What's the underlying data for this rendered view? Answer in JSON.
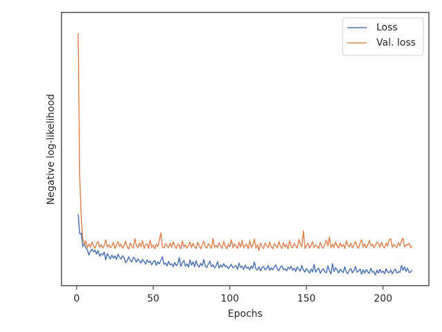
{
  "chart_data": {
    "type": "line",
    "xlabel": "Epochs",
    "ylabel": "Negative log-likelihood",
    "xlim": [
      -9.9,
      229.9
    ],
    "ylim": [
      0,
      100
    ],
    "xticks": [
      0,
      50,
      100,
      150,
      200
    ],
    "legend": "upper right",
    "x": [
      1,
      2,
      3,
      4,
      5,
      6,
      7,
      8,
      9,
      10,
      11,
      12,
      13,
      14,
      15,
      16,
      17,
      18,
      19,
      20,
      21,
      22,
      23,
      24,
      25,
      26,
      27,
      28,
      29,
      30,
      31,
      32,
      33,
      34,
      35,
      36,
      37,
      38,
      39,
      40,
      41,
      42,
      43,
      44,
      45,
      46,
      47,
      48,
      49,
      50,
      51,
      52,
      53,
      54,
      55,
      56,
      57,
      58,
      59,
      60,
      61,
      62,
      63,
      64,
      65,
      66,
      67,
      68,
      69,
      70,
      71,
      72,
      73,
      74,
      75,
      76,
      77,
      78,
      79,
      80,
      81,
      82,
      83,
      84,
      85,
      86,
      87,
      88,
      89,
      90,
      91,
      92,
      93,
      94,
      95,
      96,
      97,
      98,
      99,
      100,
      101,
      102,
      103,
      104,
      105,
      106,
      107,
      108,
      109,
      110,
      111,
      112,
      113,
      114,
      115,
      116,
      117,
      118,
      119,
      120,
      121,
      122,
      123,
      124,
      125,
      126,
      127,
      128,
      129,
      130,
      131,
      132,
      133,
      134,
      135,
      136,
      137,
      138,
      139,
      140,
      141,
      142,
      143,
      144,
      145,
      146,
      147,
      148,
      149,
      150,
      151,
      152,
      153,
      154,
      155,
      156,
      157,
      158,
      159,
      160,
      161,
      162,
      163,
      164,
      165,
      166,
      167,
      168,
      169,
      170,
      171,
      172,
      173,
      174,
      175,
      176,
      177,
      178,
      179,
      180,
      181,
      182,
      183,
      184,
      185,
      186,
      187,
      188,
      189,
      190,
      191,
      192,
      193,
      194,
      195,
      196,
      197,
      198,
      199,
      200,
      201,
      202,
      203,
      204,
      205,
      206,
      207,
      208,
      209,
      210,
      211,
      212,
      213,
      214,
      215,
      216,
      217,
      218,
      219
    ],
    "series": [
      {
        "name": "Loss",
        "color": "#4c72b0",
        "values": [
          26.1,
          19.0,
          19.2,
          14.3,
          15.6,
          13.8,
          13.1,
          11.2,
          12.6,
          13.4,
          12.4,
          13.0,
          11.5,
          12.9,
          10.8,
          11.6,
          11.2,
          12.3,
          9.4,
          11.8,
          10.6,
          9.8,
          11.2,
          10.1,
          10.9,
          9.6,
          11.5,
          10.4,
          9.7,
          11.0,
          10.2,
          8.4,
          9.1,
          10.6,
          9.3,
          8.7,
          10.4,
          9.9,
          8.6,
          9.8,
          9.1,
          8.2,
          9.6,
          8.9,
          7.9,
          9.4,
          8.5,
          9.0,
          7.6,
          8.8,
          9.2,
          7.4,
          8.7,
          8.0,
          9.3,
          10.6,
          7.8,
          8.3,
          7.2,
          8.9,
          7.6,
          8.1,
          6.9,
          8.5,
          7.3,
          7.9,
          10.3,
          7.0,
          8.4,
          9.2,
          7.1,
          8.0,
          6.8,
          9.4,
          7.5,
          8.7,
          6.9,
          9.1,
          7.4,
          6.8,
          8.2,
          7.3,
          9.6,
          7.1,
          6.6,
          8.0,
          9.0,
          6.9,
          7.7,
          6.5,
          7.2,
          8.8,
          6.4,
          7.6,
          6.8,
          8.1,
          6.9,
          7.3,
          6.2,
          7.0,
          7.8,
          6.5,
          6.9,
          7.4,
          6.0,
          8.3,
          6.6,
          7.1,
          5.9,
          7.5,
          6.4,
          6.8,
          5.8,
          7.2,
          6.3,
          8.7,
          6.1,
          5.7,
          6.9,
          5.4,
          6.6,
          7.0,
          5.9,
          6.2,
          7.4,
          5.6,
          6.5,
          5.8,
          6.9,
          7.6,
          6.0,
          5.5,
          6.8,
          7.3,
          5.8,
          6.2,
          5.4,
          6.7,
          6.1,
          7.1,
          5.6,
          6.4,
          5.2,
          6.8,
          6.0,
          5.3,
          7.4,
          5.7,
          5.0,
          6.3,
          5.5,
          4.6,
          6.1,
          5.0,
          7.8,
          4.9,
          5.8,
          6.4,
          4.5,
          5.6,
          6.2,
          5.1,
          4.7,
          7.3,
          5.4,
          4.3,
          8.1,
          5.2,
          6.6,
          5.8,
          4.6,
          6.0,
          5.3,
          4.8,
          6.9,
          5.0,
          4.4,
          5.7,
          6.3,
          4.7,
          5.5,
          7.0,
          4.9,
          5.3,
          6.1,
          4.2,
          5.8,
          4.6,
          5.9,
          5.1,
          4.5,
          6.4,
          4.9,
          5.2,
          3.9,
          5.7,
          4.6,
          6.0,
          4.8,
          5.3,
          4.4,
          6.2,
          5.0,
          4.7,
          5.8,
          4.3,
          5.4,
          6.1,
          4.6,
          5.1,
          4.9,
          7.4,
          5.6,
          6.9,
          5.2,
          6.4,
          4.8,
          5.0,
          5.7
        ]
      },
      {
        "name": "Val. loss",
        "color": "#dd8452",
        "values": [
          92.4,
          40.1,
          25.0,
          17.3,
          15.1,
          16.4,
          13.9,
          15.2,
          14.1,
          16.0,
          14.6,
          13.7,
          15.4,
          16.2,
          14.0,
          15.1,
          13.8,
          14.7,
          16.8,
          14.2,
          15.0,
          13.9,
          14.5,
          15.8,
          13.6,
          14.9,
          16.1,
          14.3,
          15.2,
          13.7,
          14.8,
          16.3,
          14.1,
          13.5,
          15.6,
          14.4,
          13.8,
          17.2,
          14.6,
          13.9,
          15.7,
          14.2,
          16.5,
          13.6,
          14.9,
          15.3,
          13.7,
          16.6,
          14.0,
          14.8,
          13.5,
          15.1,
          14.3,
          16.7,
          19.3,
          14.1,
          13.8,
          15.4,
          14.6,
          13.9,
          15.6,
          14.0,
          16.1,
          14.5,
          13.6,
          15.2,
          14.8,
          13.4,
          16.4,
          14.2,
          15.0,
          13.7,
          14.6,
          16.0,
          13.9,
          15.5,
          14.3,
          13.6,
          15.9,
          14.7,
          13.5,
          14.9,
          16.3,
          14.1,
          13.8,
          15.4,
          14.5,
          13.6,
          17.3,
          14.0,
          14.8,
          13.9,
          15.7,
          14.4,
          13.7,
          16.2,
          14.6,
          13.5,
          15.1,
          14.2,
          16.8,
          13.9,
          15.3,
          14.5,
          13.6,
          15.9,
          14.1,
          16.6,
          13.8,
          14.7,
          15.2,
          13.5,
          16.4,
          14.0,
          14.8,
          17.1,
          13.7,
          15.0,
          12.9,
          15.6,
          14.3,
          13.6,
          15.5,
          14.6,
          13.9,
          16.0,
          14.2,
          13.5,
          15.3,
          14.7,
          13.8,
          16.2,
          14.4,
          13.6,
          15.7,
          14.1,
          15.0,
          13.5,
          16.5,
          14.3,
          13.9,
          15.4,
          14.6,
          13.7,
          16.9,
          15.1,
          14.2,
          20.1,
          13.6,
          14.8,
          15.5,
          13.8,
          14.7,
          16.1,
          13.9,
          15.0,
          14.4,
          13.6,
          15.8,
          14.2,
          13.7,
          15.3,
          16.7,
          14.5,
          17.8,
          13.9,
          15.2,
          14.0,
          16.0,
          14.6,
          13.8,
          15.7,
          14.3,
          15.1,
          13.6,
          16.4,
          14.9,
          14.2,
          15.5,
          13.9,
          14.8,
          16.2,
          14.4,
          13.7,
          15.6,
          16.8,
          14.1,
          15.3,
          13.8,
          14.9,
          16.5,
          14.6,
          15.2,
          13.9,
          14.7,
          16.0,
          15.4,
          14.1,
          15.9,
          14.3,
          13.8,
          15.6,
          14.5,
          16.7,
          17.2,
          14.0,
          15.1,
          14.4,
          13.9,
          15.8,
          14.6,
          16.3,
          17.4,
          14.2,
          15.0,
          14.8,
          15.5,
          13.9,
          14.6
        ]
      }
    ]
  }
}
